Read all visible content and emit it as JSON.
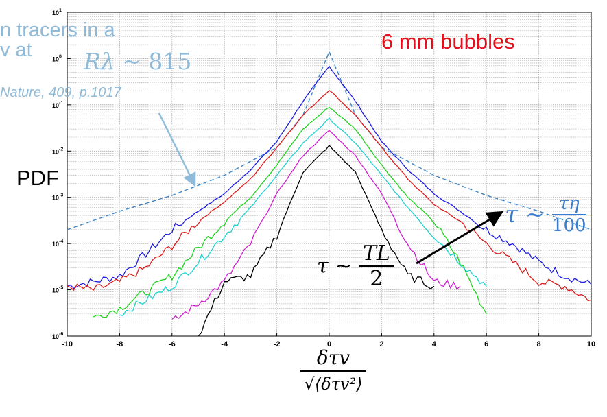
{
  "chart_data": {
    "type": "line",
    "title": "",
    "x_ticks": [
      "-10",
      "-8",
      "-6",
      "-4",
      "-2",
      "0",
      "2",
      "4",
      "6",
      "8",
      "10"
    ],
    "y_ticks": [
      "10^1",
      "10^0",
      "10^-1",
      "10^-2",
      "10^-3",
      "10^-4",
      "10^-5",
      "10^-6"
    ],
    "xlim": [
      -10,
      10
    ],
    "ylim_log10": [
      -6,
      1
    ],
    "yscale": "log",
    "grid": true,
    "series": [
      {
        "color": "#3a85c8",
        "dashed": true,
        "x": [
          -10,
          -8,
          -6,
          -4,
          -2,
          -1,
          0,
          1,
          2,
          4,
          6,
          8,
          10
        ],
        "y": [
          0.0002,
          0.0005,
          0.0011,
          0.003,
          0.012,
          0.06,
          1.4,
          0.06,
          0.012,
          0.003,
          0.0011,
          0.0005,
          0.0002
        ]
      },
      {
        "color": "#1a1ae0",
        "x": [
          -10,
          -9,
          -8,
          -7,
          -6,
          -5,
          -4,
          -3,
          -2,
          -1,
          0,
          1,
          2,
          3,
          4,
          5,
          6,
          7,
          8,
          9,
          10
        ],
        "y": [
          1.2e-05,
          1.5e-05,
          2e-05,
          6e-05,
          0.0002,
          0.0005,
          0.0012,
          0.004,
          0.016,
          0.12,
          0.68,
          0.12,
          0.016,
          0.004,
          0.0012,
          0.0005,
          0.0002,
          0.0001,
          4e-05,
          2e-05,
          1.3e-05
        ]
      },
      {
        "color": "#e01a1a",
        "x": [
          -10,
          -9,
          -8,
          -7,
          -6,
          -5,
          -4,
          -3,
          -2,
          -1,
          0,
          1,
          2,
          3,
          4,
          5,
          6,
          7,
          8,
          9,
          10
        ],
        "y": [
          1.2e-05,
          1e-05,
          1.5e-05,
          3e-05,
          9e-05,
          0.0003,
          0.0008,
          0.0025,
          0.012,
          0.06,
          0.21,
          0.06,
          0.012,
          0.0025,
          0.0007,
          0.0003,
          0.0001,
          4e-05,
          1.5e-05,
          1.2e-05,
          6e-06
        ]
      },
      {
        "color": "#1ad21a",
        "x": [
          -9,
          -8,
          -7,
          -6,
          -5,
          -4,
          -3,
          -2,
          -1,
          0,
          1,
          2,
          3,
          4,
          5,
          6
        ],
        "y": [
          2.5e-06,
          4e-06,
          9e-06,
          2e-05,
          8e-05,
          0.0003,
          0.001,
          0.005,
          0.03,
          0.09,
          0.03,
          0.005,
          0.001,
          0.0003,
          4e-05,
          3e-06
        ]
      },
      {
        "color": "#1ad2d2",
        "x": [
          -8,
          -7,
          -6,
          -5,
          -4,
          -3,
          -2,
          -1,
          0,
          1,
          2,
          3,
          4,
          5,
          6
        ],
        "y": [
          3e-06,
          6e-06,
          1.2e-05,
          4e-05,
          0.00015,
          0.0006,
          0.003,
          0.015,
          0.05,
          0.015,
          0.003,
          0.0006,
          0.00015,
          4e-05,
          1.2e-05
        ]
      },
      {
        "color": "#d21ad2",
        "x": [
          -6,
          -5,
          -4,
          -3,
          -2,
          -1,
          0,
          1,
          2,
          3,
          4,
          5
        ],
        "y": [
          2e-06,
          5e-06,
          1.5e-05,
          0.0001,
          0.0012,
          0.008,
          0.028,
          0.008,
          0.0012,
          0.0001,
          1.5e-05,
          1.2e-05
        ]
      },
      {
        "color": "#000000",
        "x": [
          -5,
          -4,
          -3,
          -2,
          -1,
          0,
          1,
          2,
          3,
          4
        ],
        "y": [
          1e-06,
          1.5e-05,
          2e-05,
          0.00015,
          0.0035,
          0.013,
          0.0035,
          0.0002,
          2e-05,
          1.2e-05
        ]
      }
    ]
  },
  "annotations": {
    "tracers": "n tracers in a",
    "flow_at": "v at",
    "re_symbol": "Rλ",
    "re_approx": "~ 815",
    "nature_ref": "Nature, 409, p.1017",
    "bubbles": "6 mm bubbles",
    "pdf": "PDF",
    "tau_big_lhs": "τ ~",
    "tau_big_num": "τη",
    "tau_big_den": "100",
    "tau_small_lhs": "τ ~",
    "tau_small_num": "TL",
    "tau_small_den": "2",
    "xlabel_num": "δτv",
    "xlabel_den": "√⟨δτv²⟩"
  },
  "colors": {
    "blue_dashed": "#3a85c8",
    "annotation_light_blue": "#8fbad8",
    "bubbles_red": "#e3101c",
    "tau_blue": "#3b7dd0"
  }
}
